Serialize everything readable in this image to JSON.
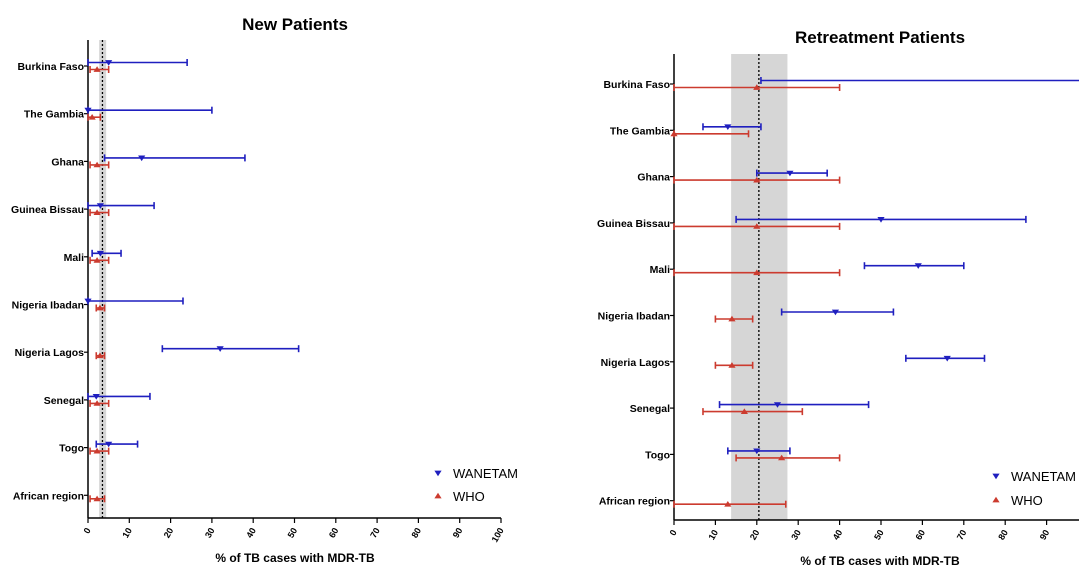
{
  "colors": {
    "wanetam": "#1f1fbf",
    "who": "#cc3b2f",
    "band": "#d6d6d6",
    "axis": "#000000"
  },
  "chart_data": [
    {
      "type": "forest",
      "title": "New Patients",
      "xlabel": "% of TB cases with MDR-TB",
      "xlim": [
        0,
        100
      ],
      "xticks": [
        0,
        10,
        20,
        30,
        40,
        50,
        60,
        70,
        80,
        90,
        100
      ],
      "reference_line": 3.5,
      "reference_band": [
        2.7,
        4.4
      ],
      "categories": [
        "Burkina Faso",
        "The Gambia",
        "Ghana",
        "Guinea Bissau",
        "Mali",
        "Nigeria Ibadan",
        "Nigeria Lagos",
        "Senegal",
        "Togo",
        "African region"
      ],
      "series": [
        {
          "name": "WANETAM",
          "marker": "triangle-down",
          "color_key": "wanetam",
          "values": [
            5,
            0,
            13,
            3,
            3,
            0,
            32,
            2,
            5,
            null
          ],
          "lower": [
            0,
            0,
            4,
            0,
            1,
            0,
            18,
            0,
            2,
            null
          ],
          "upper": [
            24,
            30,
            38,
            16,
            8,
            23,
            51,
            15,
            12,
            null
          ]
        },
        {
          "name": "WHO",
          "marker": "triangle-up",
          "color_key": "who",
          "values": [
            2.2,
            1.0,
            2.2,
            2.2,
            2.2,
            2.9,
            2.9,
            2.2,
            2.2,
            2.2
          ],
          "lower": [
            0.5,
            0,
            0.5,
            0.5,
            0.5,
            2.0,
            2.0,
            0.5,
            0.5,
            0.5
          ],
          "upper": [
            5,
            3,
            5,
            5,
            5,
            4,
            4,
            5,
            5,
            4
          ]
        }
      ],
      "legend": "bottom-right"
    },
    {
      "type": "forest",
      "title": "Retreatment Patients",
      "xlabel": "% of TB cases with MDR-TB",
      "xlim": [
        0,
        100
      ],
      "xticks": [
        0,
        10,
        20,
        30,
        40,
        50,
        60,
        70,
        80,
        90
      ],
      "reference_line": 20.5,
      "reference_band": [
        13.8,
        27.4
      ],
      "categories": [
        "Burkina Faso",
        "The Gambia",
        "Ghana",
        "Guinea Bissau",
        "Mali",
        "Nigeria Ibadan",
        "Nigeria Lagos",
        "Senegal",
        "Togo",
        "African region"
      ],
      "series": [
        {
          "name": "WANETAM",
          "marker": "triangle-down",
          "color_key": "wanetam",
          "values": [
            null,
            13,
            28,
            50,
            59,
            39,
            66,
            25,
            20,
            null
          ],
          "lower": [
            21,
            7,
            20,
            15,
            46,
            26,
            56,
            11,
            13,
            null
          ],
          "upper": [
            100,
            21,
            37,
            85,
            70,
            53,
            75,
            47,
            28,
            null
          ]
        },
        {
          "name": "WHO",
          "marker": "triangle-up",
          "color_key": "who",
          "values": [
            20,
            0,
            20,
            20,
            20,
            14,
            14,
            17,
            26,
            13
          ],
          "lower": [
            0,
            0,
            0,
            0,
            0,
            10,
            10,
            7,
            15,
            0
          ],
          "upper": [
            40,
            18,
            40,
            40,
            40,
            19,
            19,
            31,
            40,
            27
          ]
        }
      ],
      "legend": "bottom-right"
    }
  ]
}
